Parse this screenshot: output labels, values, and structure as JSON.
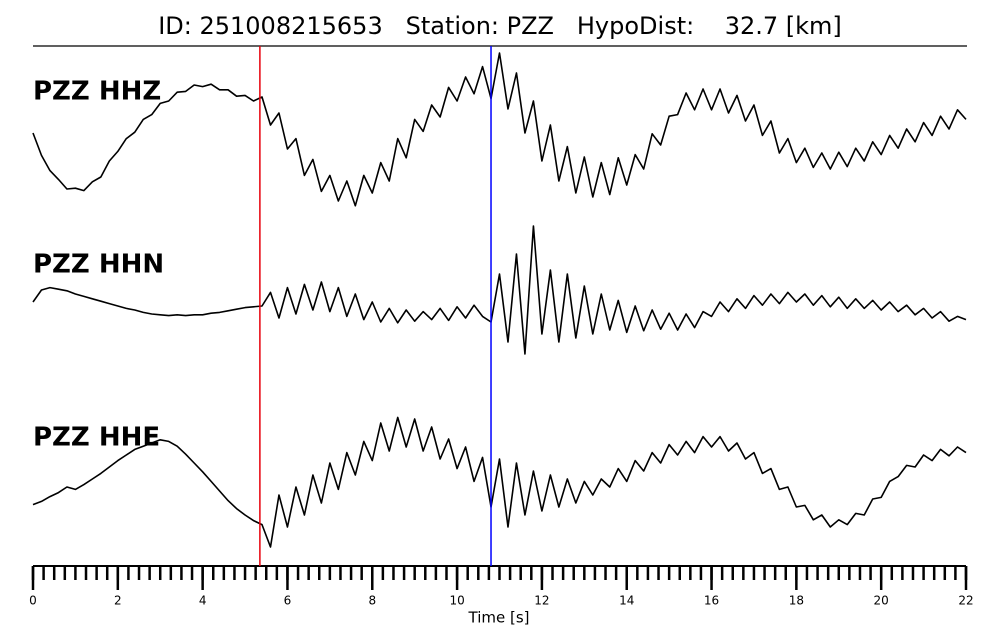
{
  "chart_data": {
    "type": "seismogram",
    "title": "ID: 251008215653   Station: PZZ   HypoDist:    32.7 [km]",
    "x_label": "Time [s]",
    "xlim": [
      0,
      22
    ],
    "xticks": [
      0,
      2,
      4,
      6,
      8,
      10,
      12,
      14,
      16,
      18,
      20,
      22
    ],
    "xminorticks": [
      0,
      0.25,
      0.5,
      0.75,
      1,
      1.25,
      1.5,
      1.75,
      2,
      2.25,
      2.5,
      2.75,
      3,
      3.25,
      3.5,
      3.75,
      4,
      4.25,
      4.5,
      4.75,
      5,
      5.25,
      5.5,
      5.75,
      6,
      6.25,
      6.5,
      6.75,
      7,
      7.25,
      7.5,
      7.75,
      8,
      8.25,
      8.5,
      8.75,
      9,
      9.25,
      9.5,
      9.75,
      10,
      10.25,
      10.5,
      10.75,
      11,
      11.25,
      11.5,
      11.75,
      12,
      12.25,
      12.5,
      12.75,
      13,
      13.25,
      13.5,
      13.75,
      14,
      14.25,
      14.5,
      14.75,
      15,
      15.25,
      15.5,
      15.75,
      16,
      16.25,
      16.5,
      16.75,
      17,
      17.25,
      17.5,
      17.75,
      18,
      18.25,
      18.5,
      18.75,
      19,
      19.25,
      19.5,
      19.75,
      20,
      20.25,
      20.5,
      20.75,
      21,
      21.25,
      21.5,
      21.75,
      22
    ],
    "label_color": "#4c9a00",
    "trace_color": "#000000",
    "picks": [
      {
        "x": 5.35,
        "color": "#e8000b"
      },
      {
        "x": 10.8,
        "color": "#0000ff"
      }
    ],
    "x": [
      0,
      0.2,
      0.4,
      0.6,
      0.8,
      1,
      1.2,
      1.4,
      1.6,
      1.8,
      2,
      2.2,
      2.4,
      2.6,
      2.8,
      3,
      3.2,
      3.4,
      3.6,
      3.8,
      4,
      4.2,
      4.4,
      4.6,
      4.8,
      5,
      5.2,
      5.4,
      5.6,
      5.8,
      6,
      6.2,
      6.4,
      6.6,
      6.8,
      7,
      7.2,
      7.4,
      7.6,
      7.8,
      8,
      8.2,
      8.4,
      8.6,
      8.8,
      9,
      9.2,
      9.4,
      9.6,
      9.8,
      10,
      10.2,
      10.4,
      10.6,
      10.8,
      11,
      11.2,
      11.4,
      11.6,
      11.8,
      12,
      12.2,
      12.4,
      12.6,
      12.8,
      13,
      13.2,
      13.4,
      13.6,
      13.8,
      14,
      14.2,
      14.4,
      14.6,
      14.8,
      15,
      15.2,
      15.4,
      15.6,
      15.8,
      16,
      16.2,
      16.4,
      16.6,
      16.8,
      17,
      17.2,
      17.4,
      17.6,
      17.8,
      18,
      18.2,
      18.4,
      18.6,
      18.8,
      19,
      19.2,
      19.4,
      19.6,
      19.8,
      20,
      20.2,
      20.4,
      20.6,
      20.8,
      21,
      21.2,
      21.4,
      21.6,
      21.8,
      22
    ],
    "series": [
      {
        "name": "PZZ HHZ",
        "values": [
          0.15,
          -0.13,
          -0.32,
          -0.43,
          -0.55,
          -0.54,
          -0.57,
          -0.46,
          -0.4,
          -0.2,
          -0.08,
          0.08,
          0.16,
          0.32,
          0.38,
          0.52,
          0.55,
          0.66,
          0.67,
          0.75,
          0.73,
          0.76,
          0.69,
          0.69,
          0.61,
          0.62,
          0.55,
          0.6,
          0.25,
          0.4,
          -0.05,
          0.08,
          -0.38,
          -0.18,
          -0.58,
          -0.38,
          -0.7,
          -0.45,
          -0.76,
          -0.38,
          -0.6,
          -0.22,
          -0.45,
          0.08,
          -0.16,
          0.32,
          0.17,
          0.5,
          0.35,
          0.72,
          0.55,
          0.85,
          0.64,
          0.98,
          0.58,
          1.15,
          0.45,
          0.9,
          0.15,
          0.55,
          -0.2,
          0.25,
          -0.45,
          -0.02,
          -0.6,
          -0.15,
          -0.65,
          -0.22,
          -0.62,
          -0.16,
          -0.5,
          -0.12,
          -0.3,
          0.14,
          0,
          0.36,
          0.38,
          0.65,
          0.44,
          0.7,
          0.44,
          0.7,
          0.4,
          0.62,
          0.3,
          0.5,
          0.12,
          0.3,
          -0.1,
          0.08,
          -0.22,
          -0.04,
          -0.28,
          -0.1,
          -0.3,
          -0.09,
          -0.27,
          -0.04,
          -0.2,
          0.04,
          -0.12,
          0.12,
          -0.04,
          0.2,
          0.04,
          0.28,
          0.12,
          0.36,
          0.2,
          0.44,
          0.32
        ]
      },
      {
        "name": "PZZ HHN",
        "values": [
          0.2,
          0.35,
          0.38,
          0.36,
          0.34,
          0.3,
          0.27,
          0.24,
          0.21,
          0.18,
          0.15,
          0.12,
          0.1,
          0.07,
          0.05,
          0.04,
          0.03,
          0.04,
          0.03,
          0.04,
          0.04,
          0.06,
          0.07,
          0.09,
          0.11,
          0.13,
          0.14,
          0.15,
          0.32,
          0,
          0.38,
          0.05,
          0.42,
          0.1,
          0.45,
          0.08,
          0.38,
          0.02,
          0.3,
          -0.02,
          0.2,
          -0.05,
          0.12,
          -0.06,
          0.1,
          -0.04,
          0.08,
          -0.02,
          0.12,
          -0.03,
          0.14,
          0,
          0.16,
          0.02,
          -0.05,
          0.55,
          -0.3,
          0.8,
          -0.45,
          1.15,
          -0.2,
          0.6,
          -0.3,
          0.55,
          -0.25,
          0.4,
          -0.2,
          0.3,
          -0.15,
          0.22,
          -0.18,
          0.15,
          -0.16,
          0.1,
          -0.14,
          0.06,
          -0.15,
          0.05,
          -0.12,
          0.08,
          0.02,
          0.2,
          0.08,
          0.24,
          0.12,
          0.28,
          0.16,
          0.3,
          0.18,
          0.32,
          0.2,
          0.3,
          0.16,
          0.28,
          0.14,
          0.26,
          0.12,
          0.24,
          0.12,
          0.22,
          0.1,
          0.2,
          0.08,
          0.16,
          0.04,
          0.12,
          0,
          0.08,
          -0.04,
          0.02,
          -0.02
        ]
      },
      {
        "name": "PZZ HHE",
        "values": [
          -0.17,
          -0.13,
          -0.07,
          -0.02,
          0.05,
          0.02,
          0.08,
          0.15,
          0.22,
          0.3,
          0.38,
          0.45,
          0.52,
          0.56,
          0.6,
          0.64,
          0.62,
          0.56,
          0.46,
          0.35,
          0.24,
          0.12,
          0,
          -0.12,
          -0.22,
          -0.3,
          -0.37,
          -0.42,
          -0.7,
          -0.05,
          -0.45,
          0.05,
          -0.3,
          0.2,
          -0.15,
          0.35,
          0.02,
          0.48,
          0.2,
          0.62,
          0.38,
          0.85,
          0.5,
          0.92,
          0.55,
          0.9,
          0.5,
          0.8,
          0.4,
          0.65,
          0.28,
          0.55,
          0.12,
          0.42,
          -0.2,
          0.4,
          -0.45,
          0.35,
          -0.3,
          0.25,
          -0.25,
          0.2,
          -0.2,
          0.15,
          -0.15,
          0.12,
          -0.05,
          0.15,
          0.05,
          0.28,
          0.12,
          0.38,
          0.25,
          0.48,
          0.35,
          0.58,
          0.45,
          0.62,
          0.48,
          0.68,
          0.55,
          0.68,
          0.5,
          0.6,
          0.4,
          0.48,
          0.22,
          0.28,
          0.02,
          0.05,
          -0.2,
          -0.18,
          -0.36,
          -0.3,
          -0.45,
          -0.36,
          -0.42,
          -0.28,
          -0.3,
          -0.1,
          -0.08,
          0.12,
          0.18,
          0.32,
          0.3,
          0.45,
          0.38,
          0.52,
          0.44,
          0.55,
          0.48
        ]
      }
    ]
  }
}
